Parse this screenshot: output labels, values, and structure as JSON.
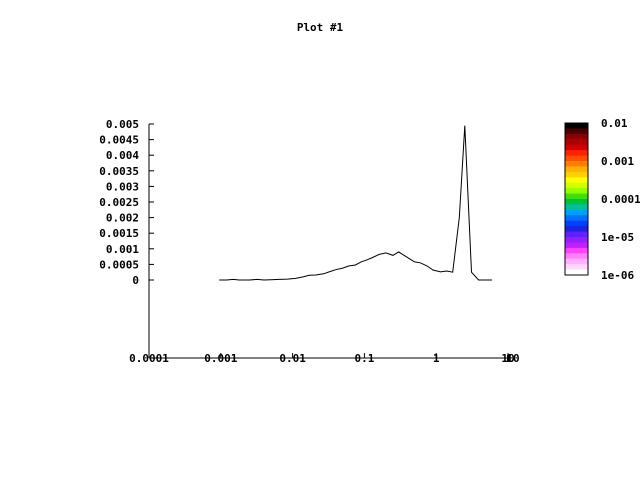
{
  "chart_data": {
    "type": "line",
    "title": "Plot #1",
    "xlabel": "",
    "ylabel": "",
    "x_scale": "log",
    "xlim": [
      0.0001,
      10
    ],
    "ylim": [
      -0.0025,
      0.005
    ],
    "grid": false,
    "legend": "none",
    "x_ticks": [
      {
        "value": 0.0001,
        "label": "0.0001"
      },
      {
        "value": 0.001,
        "label": "0.001"
      },
      {
        "value": 0.01,
        "label": "0.01"
      },
      {
        "value": 0.1,
        "label": "0.1"
      },
      {
        "value": 1,
        "label": "1"
      },
      {
        "value": 10,
        "label": "10"
      }
    ],
    "x_tick_extra_label": "10",
    "y_ticks": [
      {
        "value": 0,
        "label": "0"
      },
      {
        "value": 0.0005,
        "label": "0.0005"
      },
      {
        "value": 0.001,
        "label": "0.001"
      },
      {
        "value": 0.0015,
        "label": "0.0015"
      },
      {
        "value": 0.002,
        "label": "0.002"
      },
      {
        "value": 0.0025,
        "label": "0.0025"
      },
      {
        "value": 0.003,
        "label": "0.003"
      },
      {
        "value": 0.0035,
        "label": "0.0035"
      },
      {
        "value": 0.004,
        "label": "0.004"
      },
      {
        "value": 0.0045,
        "label": "0.0045"
      },
      {
        "value": 0.005,
        "label": "0.005"
      }
    ],
    "series": [
      {
        "color": "#000000",
        "points": [
          [
            0.00095,
            0.0
          ],
          [
            0.0012,
            0.0
          ],
          [
            0.0015,
            2e-05
          ],
          [
            0.0018,
            0.0
          ],
          [
            0.0025,
            0.0
          ],
          [
            0.0032,
            2e-05
          ],
          [
            0.004,
            0.0
          ],
          [
            0.005,
            1e-05
          ],
          [
            0.0065,
            2e-05
          ],
          [
            0.0085,
            3e-05
          ],
          [
            0.011,
            5e-05
          ],
          [
            0.014,
            0.0001
          ],
          [
            0.017,
            0.00015
          ],
          [
            0.021,
            0.00016
          ],
          [
            0.027,
            0.0002
          ],
          [
            0.033,
            0.00027
          ],
          [
            0.04,
            0.00033
          ],
          [
            0.05,
            0.00038
          ],
          [
            0.06,
            0.00045
          ],
          [
            0.075,
            0.00048
          ],
          [
            0.09,
            0.00058
          ],
          [
            0.11,
            0.00065
          ],
          [
            0.13,
            0.00072
          ],
          [
            0.16,
            0.00082
          ],
          [
            0.2,
            0.00087
          ],
          [
            0.25,
            0.00079
          ],
          [
            0.3,
            0.0009
          ],
          [
            0.38,
            0.00075
          ],
          [
            0.5,
            0.00058
          ],
          [
            0.6,
            0.00055
          ],
          [
            0.75,
            0.00045
          ],
          [
            0.9,
            0.00032
          ],
          [
            1.15,
            0.00026
          ],
          [
            1.4,
            0.00029
          ],
          [
            1.7,
            0.00025
          ],
          [
            2.1,
            0.002
          ],
          [
            2.5,
            0.00495
          ],
          [
            3.1,
            0.00025
          ],
          [
            3.9,
            0.0
          ],
          [
            6.0,
            0.0
          ]
        ]
      }
    ],
    "colorbar": {
      "scale": "log",
      "range": [
        1e-06,
        0.01
      ],
      "tick_labels": [
        "0.01",
        "0.001",
        "0.0001",
        "1e-05",
        "1e-06"
      ],
      "colors": [
        "#000000",
        "#4a0000",
        "#8b0000",
        "#b00000",
        "#d00000",
        "#ff2000",
        "#ff5000",
        "#ff8000",
        "#ffb000",
        "#ffd000",
        "#ffff00",
        "#d0ff00",
        "#90ff00",
        "#40e000",
        "#00c040",
        "#00c0a0",
        "#00a0ff",
        "#0070ff",
        "#0040ff",
        "#2020e0",
        "#6020ff",
        "#9020ff",
        "#c020ff",
        "#ff40ff",
        "#ff80ff",
        "#ffb0ff",
        "#ffd8ff",
        "#ffffff"
      ]
    }
  }
}
